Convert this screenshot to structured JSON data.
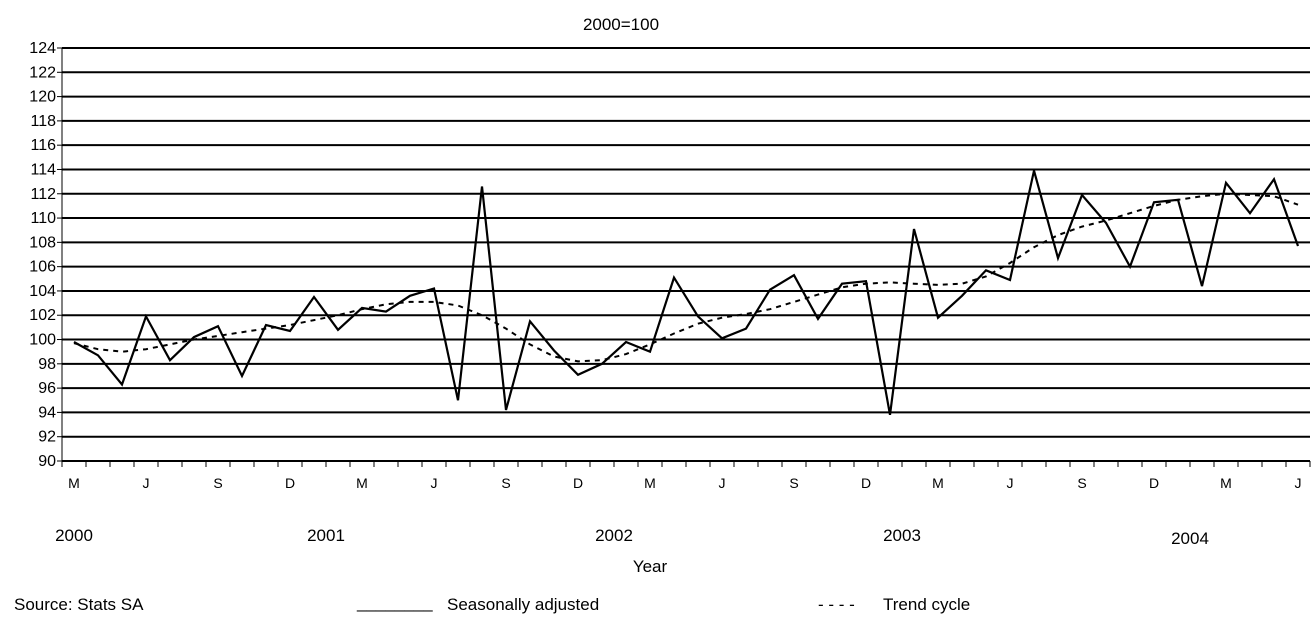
{
  "chart_data": {
    "type": "line",
    "subtitle": "2000=100",
    "xlabel": "Year",
    "ylim": [
      90,
      124
    ],
    "y_ticks": [
      90,
      92,
      94,
      96,
      98,
      100,
      102,
      104,
      106,
      108,
      110,
      112,
      114,
      116,
      118,
      120,
      122,
      124
    ],
    "grid": true,
    "month_ticks": [
      "M",
      "J",
      "S",
      "D",
      "M",
      "J",
      "S",
      "D",
      "M",
      "J",
      "S",
      "D",
      "M",
      "J",
      "S",
      "D",
      "M",
      "J",
      "S",
      "D",
      "M",
      "J"
    ],
    "years": [
      "2000",
      "2001",
      "2002",
      "2003",
      "2004"
    ],
    "x": [
      "2000-03",
      "2000-04",
      "2000-05",
      "2000-06",
      "2000-07",
      "2000-08",
      "2000-09",
      "2000-10",
      "2000-11",
      "2000-12",
      "2001-01",
      "2001-02",
      "2001-03",
      "2001-04",
      "2001-05",
      "2001-06",
      "2001-07",
      "2001-08",
      "2001-09",
      "2001-10",
      "2001-11",
      "2001-12",
      "2002-01",
      "2002-02",
      "2002-03",
      "2002-04",
      "2002-05",
      "2002-06",
      "2002-07",
      "2002-08",
      "2002-09",
      "2002-10",
      "2002-11",
      "2002-12",
      "2003-01",
      "2003-02",
      "2003-03",
      "2003-04",
      "2003-05",
      "2003-06",
      "2003-07",
      "2003-08",
      "2003-09",
      "2003-10",
      "2003-11",
      "2003-12",
      "2004-01",
      "2004-02",
      "2004-03",
      "2004-04",
      "2004-05",
      "2004-06"
    ],
    "series": [
      {
        "name": "Seasonally adjusted",
        "style": "solid",
        "values": [
          99.8,
          98.7,
          96.3,
          101.9,
          98.3,
          100.2,
          101.1,
          97.0,
          101.2,
          100.7,
          103.5,
          100.8,
          102.6,
          102.3,
          103.6,
          104.2,
          95.0,
          112.6,
          94.2,
          101.5,
          99.1,
          97.1,
          98.0,
          99.8,
          99.0,
          105.1,
          101.9,
          100.1,
          100.9,
          104.1,
          105.3,
          101.7,
          104.6,
          104.8,
          93.8,
          109.1,
          101.8,
          103.6,
          105.7,
          104.9,
          113.9,
          106.7,
          111.9,
          109.6,
          106.0,
          111.3,
          111.5,
          104.4,
          112.9,
          110.4,
          113.2,
          107.7
        ]
      },
      {
        "name": "Trend cycle",
        "style": "dashed",
        "values": [
          99.7,
          99.2,
          99.0,
          99.2,
          99.6,
          100.0,
          100.3,
          100.6,
          100.9,
          101.2,
          101.6,
          102.0,
          102.5,
          102.9,
          103.1,
          103.1,
          102.8,
          102.0,
          100.9,
          99.6,
          98.6,
          98.2,
          98.3,
          98.8,
          99.6,
          100.5,
          101.3,
          101.8,
          102.1,
          102.5,
          103.1,
          103.7,
          104.3,
          104.6,
          104.7,
          104.6,
          104.5,
          104.6,
          105.2,
          106.3,
          107.6,
          108.6,
          109.3,
          109.8,
          110.4,
          111.0,
          111.5,
          111.8,
          112.0,
          111.9,
          111.8,
          111.1
        ]
      }
    ]
  },
  "footer": {
    "source": "Source: Stats SA",
    "legend_sa_marker": "________",
    "legend_sa_label": "Seasonally adjusted",
    "legend_trend_marker": "- - - -",
    "legend_trend_label": "Trend cycle"
  }
}
